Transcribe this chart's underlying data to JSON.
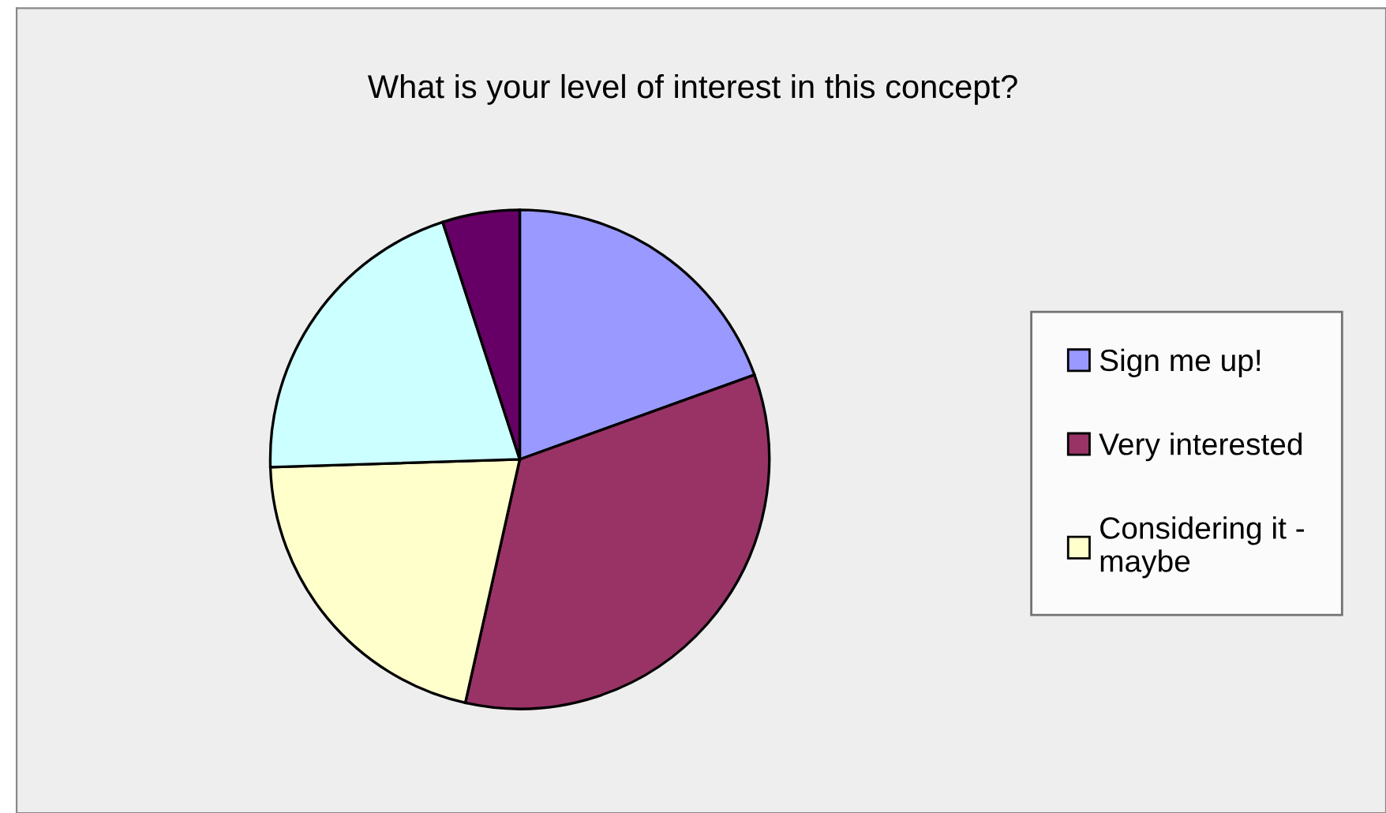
{
  "chart_data": {
    "type": "pie",
    "title": "What is your level of interest in this concept?",
    "categories": [
      "Sign me up!",
      "Very interested",
      "Considering it - maybe",
      null,
      null
    ],
    "values": [
      19.5,
      34,
      21,
      20.5,
      5
    ],
    "colors": [
      "#9999ff",
      "#993366",
      "#ffffcc",
      "#ccffff",
      "#660066"
    ],
    "legend": "right"
  }
}
